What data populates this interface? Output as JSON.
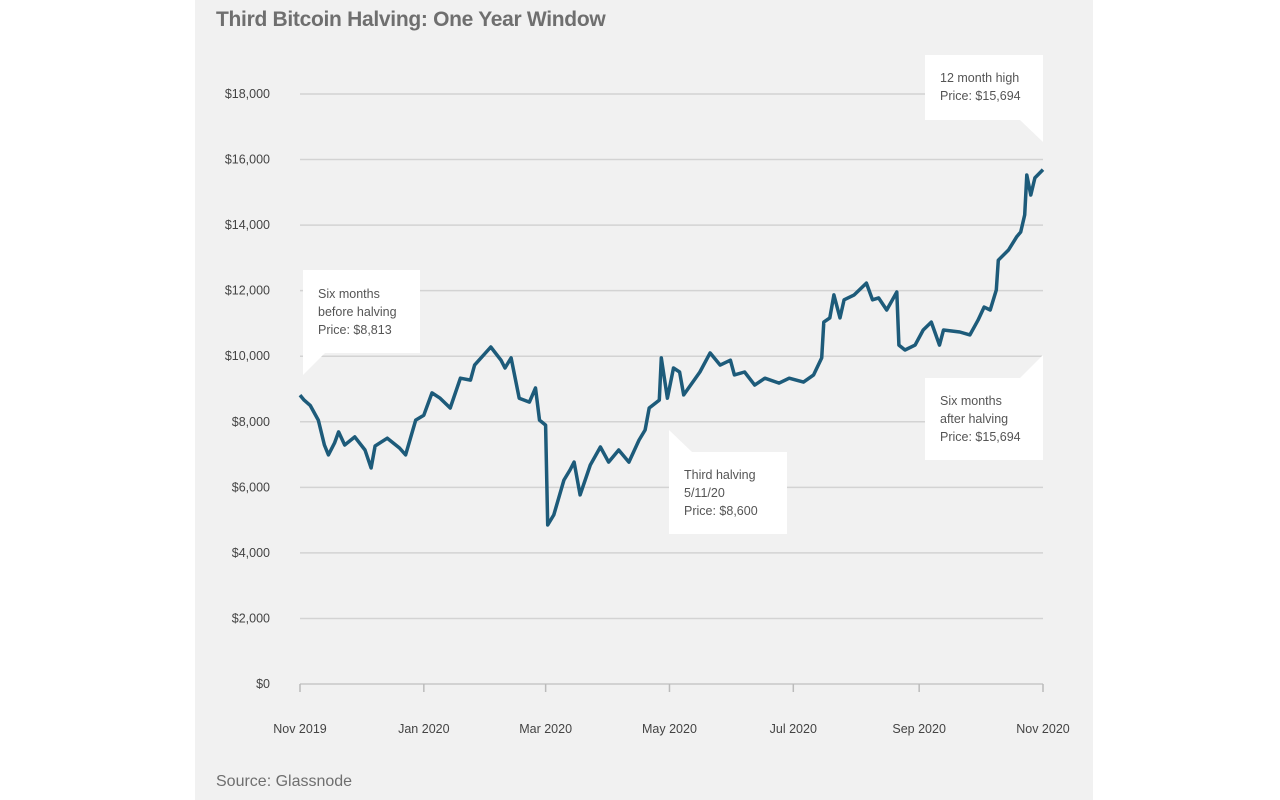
{
  "chart_data": {
    "type": "line",
    "title": "Third Bitcoin Halving: One Year Window",
    "source": "Source: Glassnode",
    "xlabel": "",
    "ylabel": "",
    "xlim": [
      "2019-11-01",
      "2020-11-01"
    ],
    "ylim": [
      0,
      18000
    ],
    "grid": true,
    "line_color": "#1d5b7a",
    "y_ticks": [
      "$0",
      "$2,000",
      "$4,000",
      "$6,000",
      "$8,000",
      "$10,000",
      "$12,000",
      "$14,000",
      "$16,000",
      "$18,000"
    ],
    "y_tick_values": [
      0,
      2000,
      4000,
      6000,
      8000,
      10000,
      12000,
      14000,
      16000,
      18000
    ],
    "x_ticks": [
      "Nov 2019",
      "Jan 2020",
      "Mar 2020",
      "May 2020",
      "Jul 2020",
      "Sep 2020",
      "Nov 2020"
    ],
    "x_tick_dates": [
      "2019-11-01",
      "2020-01-01",
      "2020-03-01",
      "2020-05-01",
      "2020-07-01",
      "2020-09-01",
      "2020-11-01"
    ],
    "series": [
      {
        "x": [
          "2019-11-01",
          "2019-11-03",
          "2019-11-06",
          "2019-11-10",
          "2019-11-13",
          "2019-11-15",
          "2019-11-18",
          "2019-11-20",
          "2019-11-23",
          "2019-11-28",
          "2019-12-03",
          "2019-12-06",
          "2019-12-08",
          "2019-12-14",
          "2019-12-20",
          "2019-12-23",
          "2019-12-28",
          "2020-01-01",
          "2020-01-05",
          "2020-01-09",
          "2020-01-14",
          "2020-01-19",
          "2020-01-24",
          "2020-01-26",
          "2020-02-03",
          "2020-02-08",
          "2020-02-10",
          "2020-02-13",
          "2020-02-17",
          "2020-02-22",
          "2020-02-25",
          "2020-02-27",
          "2020-03-01",
          "2020-03-02",
          "2020-03-05",
          "2020-03-10",
          "2020-03-13",
          "2020-03-15",
          "2020-03-18",
          "2020-03-23",
          "2020-03-28",
          "2020-04-01",
          "2020-04-06",
          "2020-04-11",
          "2020-04-16",
          "2020-04-19",
          "2020-04-21",
          "2020-04-26",
          "2020-04-27",
          "2020-04-30",
          "2020-05-03",
          "2020-05-06",
          "2020-05-08",
          "2020-05-16",
          "2020-05-21",
          "2020-05-26",
          "2020-05-31",
          "2020-06-02",
          "2020-06-07",
          "2020-06-12",
          "2020-06-17",
          "2020-06-24",
          "2020-06-29",
          "2020-07-06",
          "2020-07-11",
          "2020-07-15",
          "2020-07-16",
          "2020-07-19",
          "2020-07-21",
          "2020-07-24",
          "2020-07-26",
          "2020-07-31",
          "2020-08-06",
          "2020-08-09",
          "2020-08-12",
          "2020-08-16",
          "2020-08-21",
          "2020-08-22",
          "2020-08-25",
          "2020-08-30",
          "2020-09-03",
          "2020-09-07",
          "2020-09-11",
          "2020-09-13",
          "2020-09-21",
          "2020-09-26",
          "2020-09-30",
          "2020-10-03",
          "2020-10-06",
          "2020-10-09",
          "2020-10-10",
          "2020-10-15",
          "2020-10-19",
          "2020-10-21",
          "2020-10-23",
          "2020-10-24",
          "2020-10-26",
          "2020-10-28",
          "2020-11-01"
        ],
        "y": [
          8813,
          8660,
          8500,
          8050,
          7290,
          6990,
          7350,
          7690,
          7290,
          7540,
          7140,
          6590,
          7260,
          7500,
          7200,
          6990,
          8050,
          8200,
          8880,
          8720,
          8420,
          9330,
          9270,
          9730,
          10280,
          9880,
          9640,
          9950,
          8720,
          8600,
          9030,
          8050,
          7900,
          4850,
          5160,
          6220,
          6530,
          6770,
          5770,
          6680,
          7230,
          6770,
          7140,
          6770,
          7440,
          7750,
          8420,
          8660,
          9950,
          8720,
          9640,
          9520,
          8820,
          9520,
          10100,
          9730,
          9880,
          9430,
          9520,
          9120,
          9330,
          9180,
          9330,
          9210,
          9430,
          9950,
          11040,
          11170,
          11870,
          11170,
          11720,
          11870,
          12230,
          11720,
          11780,
          11410,
          11960,
          10340,
          10190,
          10340,
          10800,
          11040,
          10340,
          10800,
          10740,
          10650,
          11100,
          11500,
          11410,
          12020,
          12930,
          13240,
          13640,
          13790,
          14310,
          15530,
          14920,
          15440,
          15694
        ]
      }
    ],
    "annotations": [
      {
        "lines": [
          "Six months",
          "before halving",
          "Price: $8,813"
        ]
      },
      {
        "lines": [
          "Third halving",
          "5/11/20",
          "Price: $8,600"
        ]
      },
      {
        "lines": [
          "12 month high",
          "Price: $15,694"
        ]
      },
      {
        "lines": [
          "Six months",
          "after halving",
          "Price: $15,694"
        ]
      }
    ]
  }
}
